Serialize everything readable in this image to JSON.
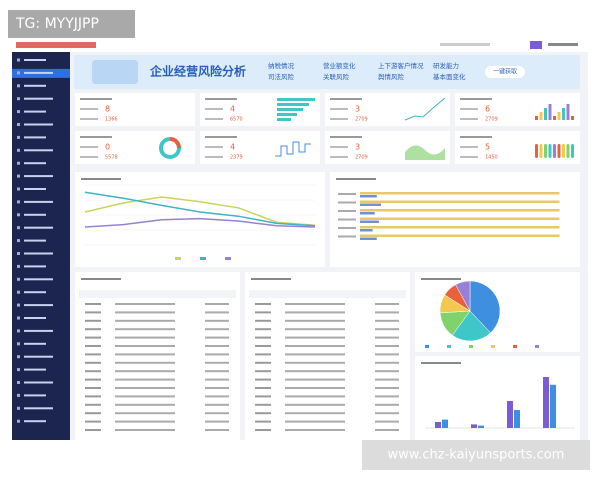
{
  "watermark_top": "TG: MYYJJPP",
  "watermark_bottom": "www.chz-kaiyunsports.com",
  "banner": {
    "title": "企业经营风险分析",
    "tags": [
      "纳税情况",
      "司法风险",
      "营业额变化",
      "关联风险",
      "上下游客户情况",
      "舆情风险",
      "研发能力",
      "基本面变化"
    ],
    "button": "一键获取"
  },
  "kpis": [
    {
      "value": 8,
      "sub": 1366
    },
    {
      "value": 4,
      "sub": 6570
    },
    {
      "value": 3,
      "sub": 2709
    },
    {
      "value": 6,
      "sub": 2709
    },
    {
      "value": 0,
      "sub": 5578
    },
    {
      "value": 4,
      "sub": 2379
    },
    {
      "value": 3,
      "sub": 2709
    },
    {
      "value": 5,
      "sub": 1450
    }
  ],
  "charts": {
    "line": {
      "type": "line",
      "ylim": [
        0,
        100
      ],
      "series": [
        {
          "color": "#c9d45a",
          "values": [
            55,
            70,
            80,
            72,
            62,
            38,
            33
          ]
        },
        {
          "color": "#3fb3c6",
          "values": [
            88,
            78,
            66,
            55,
            48,
            36,
            32
          ]
        },
        {
          "color": "#9a7fd6",
          "values": [
            30,
            34,
            42,
            44,
            40,
            32,
            30
          ]
        }
      ]
    },
    "hbar": {
      "type": "bar",
      "xlim": [
        0,
        100
      ],
      "series": [
        {
          "color": "#e8c86a",
          "values": [
            95,
            95,
            95,
            95,
            95,
            95
          ]
        },
        {
          "color": "#6f8fd8",
          "values": [
            8,
            10,
            7,
            9,
            6,
            8
          ]
        }
      ]
    },
    "pie": {
      "type": "pie",
      "values": [
        38,
        22,
        14,
        10,
        8,
        8
      ],
      "colors": [
        "#3f8fe0",
        "#3fc6c9",
        "#7fd36a",
        "#f2c94c",
        "#e8603c",
        "#9a7fd6"
      ]
    },
    "vbar": {
      "type": "bar",
      "ylim": [
        0,
        100
      ],
      "series": [
        {
          "color": "#7a5cd6",
          "values": [
            10,
            6,
            45,
            85
          ]
        },
        {
          "color": "#3f8fe0",
          "values": [
            14,
            4,
            30,
            72
          ]
        }
      ]
    }
  }
}
